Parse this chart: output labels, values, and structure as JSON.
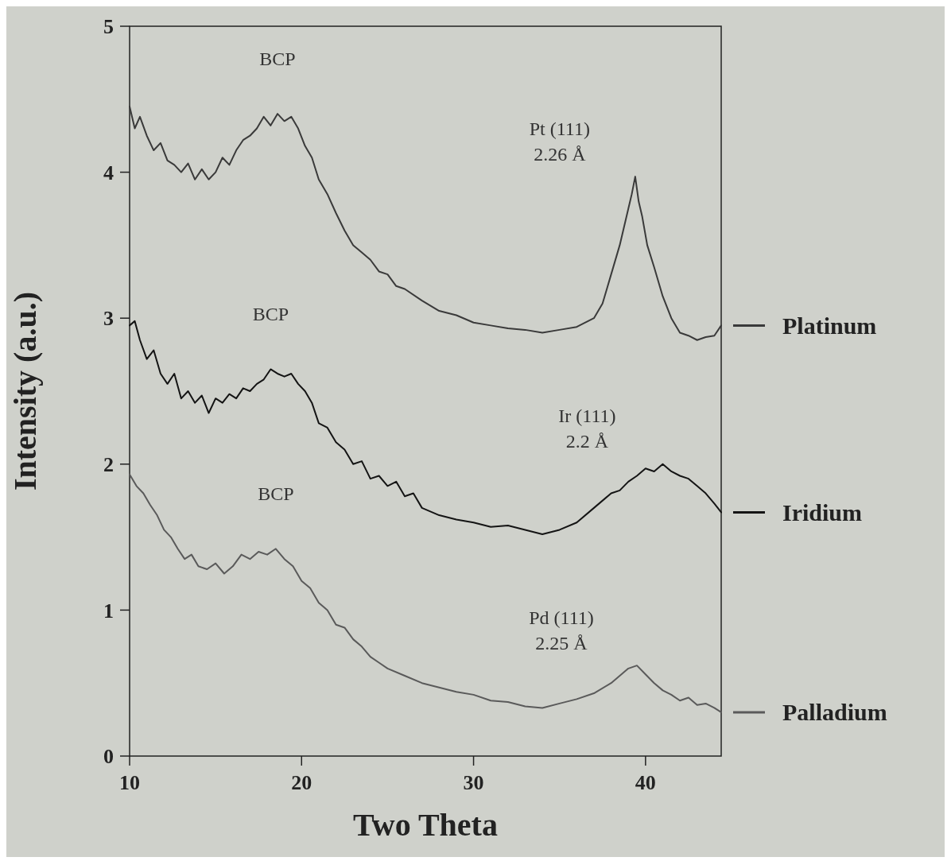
{
  "chart_data": {
    "type": "line",
    "xlabel": "Two Theta",
    "ylabel": "Intensity (a.u.)",
    "xlim": [
      10,
      44.4
    ],
    "xticks": [
      10,
      20,
      30,
      40
    ],
    "ylim": [
      0,
      5
    ],
    "yticks": [
      0,
      1,
      2,
      3,
      4,
      5
    ],
    "grid": false,
    "legend": "right",
    "marker": "none",
    "line_style": "solid",
    "series": [
      {
        "name": "Platinum",
        "color": "#3a3a3a",
        "x": [
          10,
          10.3,
          10.6,
          11,
          11.4,
          11.8,
          12.2,
          12.6,
          13,
          13.4,
          13.8,
          14.2,
          14.6,
          15,
          15.4,
          15.8,
          16.2,
          16.6,
          17,
          17.4,
          17.8,
          18.2,
          18.6,
          19,
          19.4,
          19.8,
          20.2,
          20.6,
          21,
          21.5,
          22,
          22.5,
          23,
          23.5,
          24,
          24.5,
          25,
          25.5,
          26,
          27,
          28,
          29,
          30,
          31,
          32,
          33,
          34,
          35,
          36,
          36.5,
          37,
          37.5,
          38,
          38.5,
          39,
          39.2,
          39.4,
          39.6,
          39.8,
          40.1,
          40.5,
          41,
          41.5,
          42,
          42.5,
          43,
          43.5,
          44,
          44.4
        ],
        "values": [
          4.45,
          4.3,
          4.38,
          4.25,
          4.15,
          4.2,
          4.08,
          4.05,
          4.0,
          4.06,
          3.95,
          4.02,
          3.95,
          4.0,
          4.1,
          4.05,
          4.15,
          4.22,
          4.25,
          4.3,
          4.38,
          4.32,
          4.4,
          4.35,
          4.38,
          4.3,
          4.18,
          4.1,
          3.95,
          3.85,
          3.72,
          3.6,
          3.5,
          3.45,
          3.4,
          3.32,
          3.3,
          3.22,
          3.2,
          3.12,
          3.05,
          3.02,
          2.97,
          2.95,
          2.93,
          2.92,
          2.9,
          2.92,
          2.94,
          2.97,
          3.0,
          3.1,
          3.3,
          3.5,
          3.75,
          3.85,
          3.97,
          3.8,
          3.7,
          3.5,
          3.35,
          3.15,
          3.0,
          2.9,
          2.88,
          2.85,
          2.87,
          2.88,
          2.95
        ]
      },
      {
        "name": "Iridium",
        "color": "#141414",
        "x": [
          10,
          10.3,
          10.6,
          11,
          11.4,
          11.8,
          12.2,
          12.6,
          13,
          13.4,
          13.8,
          14.2,
          14.6,
          15,
          15.4,
          15.8,
          16.2,
          16.6,
          17,
          17.4,
          17.8,
          18.2,
          18.6,
          19,
          19.4,
          19.8,
          20.2,
          20.6,
          21,
          21.5,
          22,
          22.5,
          23,
          23.5,
          24,
          24.5,
          25,
          25.5,
          26,
          26.5,
          27,
          28,
          29,
          30,
          31,
          32,
          33,
          34,
          35,
          36,
          37,
          38,
          38.5,
          39,
          39.5,
          40,
          40.5,
          41,
          41.5,
          42,
          42.5,
          43,
          43.5,
          44,
          44.4
        ],
        "values": [
          2.95,
          2.98,
          2.85,
          2.72,
          2.78,
          2.62,
          2.55,
          2.62,
          2.45,
          2.5,
          2.42,
          2.47,
          2.35,
          2.45,
          2.42,
          2.48,
          2.45,
          2.52,
          2.5,
          2.55,
          2.58,
          2.65,
          2.62,
          2.6,
          2.62,
          2.55,
          2.5,
          2.42,
          2.28,
          2.25,
          2.15,
          2.1,
          2.0,
          2.02,
          1.9,
          1.92,
          1.85,
          1.88,
          1.78,
          1.8,
          1.7,
          1.65,
          1.62,
          1.6,
          1.57,
          1.58,
          1.55,
          1.52,
          1.55,
          1.6,
          1.7,
          1.8,
          1.82,
          1.88,
          1.92,
          1.97,
          1.95,
          2.0,
          1.95,
          1.92,
          1.9,
          1.85,
          1.8,
          1.73,
          1.67
        ]
      },
      {
        "name": "Palladium",
        "color": "#5a5a5a",
        "x": [
          10,
          10.4,
          10.8,
          11.2,
          11.6,
          12,
          12.4,
          12.8,
          13.2,
          13.6,
          14,
          14.5,
          15,
          15.5,
          16,
          16.5,
          17,
          17.5,
          18,
          18.5,
          19,
          19.5,
          20,
          20.5,
          21,
          21.5,
          22,
          22.5,
          23,
          23.5,
          24,
          24.5,
          25,
          26,
          27,
          28,
          29,
          30,
          31,
          32,
          33,
          34,
          35,
          36,
          37,
          38,
          38.5,
          39,
          39.5,
          40,
          40.5,
          41,
          41.5,
          42,
          42.5,
          43,
          43.5,
          44,
          44.4
        ],
        "values": [
          1.93,
          1.85,
          1.8,
          1.72,
          1.65,
          1.55,
          1.5,
          1.42,
          1.35,
          1.38,
          1.3,
          1.28,
          1.32,
          1.25,
          1.3,
          1.38,
          1.35,
          1.4,
          1.38,
          1.42,
          1.35,
          1.3,
          1.2,
          1.15,
          1.05,
          1.0,
          0.9,
          0.88,
          0.8,
          0.75,
          0.68,
          0.64,
          0.6,
          0.55,
          0.5,
          0.47,
          0.44,
          0.42,
          0.38,
          0.37,
          0.34,
          0.33,
          0.36,
          0.39,
          0.43,
          0.5,
          0.55,
          0.6,
          0.62,
          0.56,
          0.5,
          0.45,
          0.42,
          0.38,
          0.4,
          0.35,
          0.36,
          0.33,
          0.3
        ]
      }
    ],
    "annotations": [
      "BCP",
      "Pt (111)\n2.26 Å",
      "BCP",
      "Ir (111)\n2.2 Å",
      "BCP",
      "Pd (111)\n2.25 Å"
    ]
  }
}
